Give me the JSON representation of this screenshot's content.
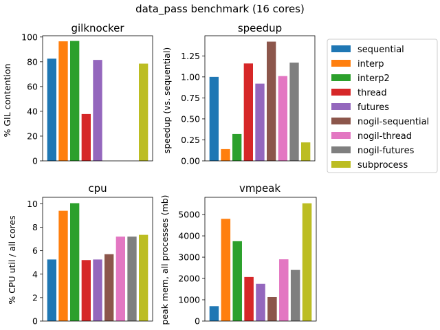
{
  "figure_title": "data_pass benchmark (16 cores)",
  "colors": {
    "sequential": "#1f77b4",
    "interp": "#ff7f0e",
    "interp2": "#2ca02c",
    "thread": "#d62728",
    "futures": "#9467bd",
    "nogil-sequential": "#8c564b",
    "nogil-thread": "#e377c2",
    "nogil-futures": "#7f7f7f",
    "subprocess": "#bcbd22"
  },
  "legend": [
    "sequential",
    "interp",
    "interp2",
    "thread",
    "futures",
    "nogil-sequential",
    "nogil-thread",
    "nogil-futures",
    "subprocess"
  ],
  "chart_data": [
    {
      "type": "bar",
      "title": "gilknocker",
      "ylabel": "% GIL contention",
      "xlabel": "",
      "categories": [
        "sequential",
        "interp",
        "interp2",
        "thread",
        "futures",
        "nogil-sequential",
        "nogil-thread",
        "nogil-futures",
        "subprocess"
      ],
      "values": [
        82.5,
        96.5,
        96.8,
        37.8,
        81.5,
        0,
        0,
        0,
        78.5
      ],
      "ylim": [
        0,
        101
      ],
      "yticks": [
        0,
        20,
        40,
        60,
        80,
        100
      ],
      "yticklabels": [
        "0",
        "20",
        "40",
        "60",
        "80",
        "100"
      ]
    },
    {
      "type": "bar",
      "title": "speedup",
      "ylabel": "speedup (vs. sequential)",
      "xlabel": "",
      "categories": [
        "sequential",
        "interp",
        "interp2",
        "thread",
        "futures",
        "nogil-sequential",
        "nogil-thread",
        "nogil-futures",
        "subprocess"
      ],
      "values": [
        1.0,
        0.14,
        0.32,
        1.16,
        0.92,
        1.42,
        1.01,
        1.17,
        0.22
      ],
      "ylim": [
        0,
        1.49
      ],
      "yticks": [
        0,
        0.25,
        0.5,
        0.75,
        1.0,
        1.25
      ],
      "yticklabels": [
        "0.00",
        "0.25",
        "0.50",
        "0.75",
        "1.00",
        "1.25"
      ]
    },
    {
      "type": "bar",
      "title": "cpu",
      "ylabel": "% CPU util / all cores",
      "xlabel": "",
      "categories": [
        "sequential",
        "interp",
        "interp2",
        "thread",
        "futures",
        "nogil-sequential",
        "nogil-thread",
        "nogil-futures",
        "subprocess"
      ],
      "values": [
        5.25,
        9.4,
        10.05,
        5.2,
        5.25,
        5.7,
        7.2,
        7.2,
        7.35
      ],
      "ylim": [
        0,
        10.55
      ],
      "yticks": [
        0,
        2,
        4,
        6,
        8,
        10
      ],
      "yticklabels": [
        "0",
        "2",
        "4",
        "6",
        "8",
        "10"
      ]
    },
    {
      "type": "bar",
      "title": "vmpeak",
      "ylabel": "peak mem, all processes (mb)",
      "xlabel": "",
      "categories": [
        "sequential",
        "interp",
        "interp2",
        "thread",
        "futures",
        "nogil-sequential",
        "nogil-thread",
        "nogil-futures",
        "subprocess"
      ],
      "values": [
        700,
        4800,
        3750,
        2070,
        1750,
        1130,
        2900,
        2400,
        5530
      ],
      "ylim": [
        0,
        5810
      ],
      "yticks": [
        0,
        1000,
        2000,
        3000,
        4000,
        5000
      ],
      "yticklabels": [
        "0",
        "1000",
        "2000",
        "3000",
        "4000",
        "5000"
      ]
    }
  ]
}
